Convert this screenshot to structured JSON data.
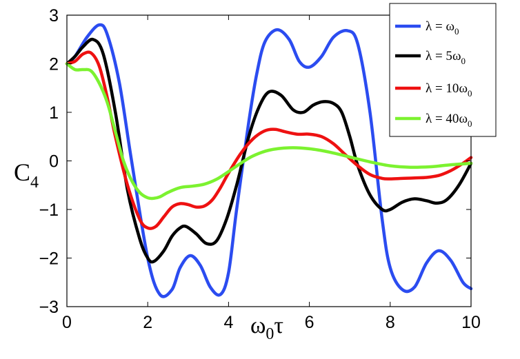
{
  "chart_data": {
    "type": "line",
    "xlabel": {
      "main": "ω",
      "sub": "0",
      "tail": "τ"
    },
    "ylabel": {
      "main": "C",
      "sub": "4"
    },
    "xlim": [
      0,
      10
    ],
    "ylim": [
      -3,
      3
    ],
    "xticks": [
      0,
      2,
      4,
      6,
      8,
      10
    ],
    "yticks": [
      3,
      2,
      1,
      0,
      -1,
      -2,
      -3
    ],
    "xtick_labels": [
      "0",
      "2",
      "4",
      "6",
      "8",
      "10"
    ],
    "ytick_labels": [
      "3",
      "2",
      "1",
      "0",
      "−1",
      "−2",
      "−3"
    ],
    "grid": false,
    "legend_position": "top-right",
    "series": [
      {
        "name": "λ = ω0",
        "legend": {
          "pre": "λ = ",
          "main": "ω",
          "sub": "0"
        },
        "color": "#2b4cf0",
        "x": [
          0,
          0.2,
          0.5,
          0.8,
          1.0,
          1.3,
          1.6,
          2.0,
          2.3,
          2.6,
          2.8,
          3.05,
          3.3,
          3.55,
          3.8,
          4.0,
          4.2,
          4.5,
          4.7,
          4.9,
          5.2,
          5.5,
          5.75,
          6.0,
          6.3,
          6.6,
          6.95,
          7.2,
          7.5,
          7.8,
          8.0,
          8.3,
          8.6,
          8.9,
          9.2,
          9.5,
          9.8,
          10.0
        ],
        "y": [
          2.0,
          2.15,
          2.55,
          2.8,
          2.6,
          1.6,
          0.0,
          -2.0,
          -2.75,
          -2.65,
          -2.2,
          -1.95,
          -2.15,
          -2.6,
          -2.75,
          -2.3,
          -1.0,
          0.8,
          1.8,
          2.45,
          2.7,
          2.5,
          2.05,
          1.93,
          2.15,
          2.55,
          2.68,
          2.4,
          1.0,
          -1.2,
          -2.2,
          -2.65,
          -2.6,
          -2.1,
          -1.85,
          -2.05,
          -2.5,
          -2.63
        ]
      },
      {
        "name": "λ = 5ω0",
        "legend": {
          "pre": "λ = 5",
          "main": "ω",
          "sub": "0"
        },
        "color": "#000000",
        "x": [
          0,
          0.2,
          0.4,
          0.65,
          0.9,
          1.2,
          1.5,
          1.8,
          2.0,
          2.15,
          2.4,
          2.6,
          2.8,
          2.95,
          3.2,
          3.45,
          3.7,
          3.95,
          4.2,
          4.5,
          4.75,
          5.0,
          5.3,
          5.6,
          5.85,
          6.1,
          6.35,
          6.6,
          6.8,
          7.0,
          7.2,
          7.5,
          7.8,
          8.0,
          8.3,
          8.6,
          8.9,
          9.15,
          9.4,
          9.7,
          10.0
        ],
        "y": [
          2.0,
          2.15,
          2.35,
          2.5,
          2.2,
          1.0,
          -0.6,
          -1.6,
          -2.0,
          -2.07,
          -1.85,
          -1.55,
          -1.38,
          -1.35,
          -1.5,
          -1.7,
          -1.65,
          -1.2,
          -0.5,
          0.5,
          1.1,
          1.42,
          1.35,
          1.05,
          1.0,
          1.15,
          1.22,
          1.18,
          1.0,
          0.5,
          -0.1,
          -0.7,
          -1.0,
          -1.0,
          -0.85,
          -0.78,
          -0.82,
          -0.87,
          -0.8,
          -0.5,
          -0.05
        ]
      },
      {
        "name": "λ = 10ω0",
        "legend": {
          "pre": "λ = 10",
          "main": "ω",
          "sub": "0"
        },
        "color": "#ee1111",
        "x": [
          0,
          0.2,
          0.4,
          0.6,
          0.8,
          1.0,
          1.2,
          1.5,
          1.8,
          2.0,
          2.2,
          2.4,
          2.6,
          2.8,
          3.0,
          3.2,
          3.4,
          3.6,
          3.8,
          4.0,
          4.3,
          4.6,
          4.9,
          5.15,
          5.4,
          5.7,
          6.0,
          6.3,
          6.6,
          6.9,
          7.2,
          7.5,
          7.8,
          8.0,
          8.3,
          8.6,
          8.9,
          9.2,
          9.5,
          9.8,
          10.0
        ],
        "y": [
          2.0,
          2.05,
          2.2,
          2.22,
          1.95,
          1.3,
          0.5,
          -0.5,
          -1.2,
          -1.38,
          -1.35,
          -1.15,
          -0.95,
          -0.88,
          -0.9,
          -0.95,
          -0.93,
          -0.8,
          -0.55,
          -0.25,
          0.15,
          0.45,
          0.62,
          0.65,
          0.6,
          0.55,
          0.55,
          0.5,
          0.35,
          0.12,
          -0.1,
          -0.28,
          -0.36,
          -0.37,
          -0.36,
          -0.35,
          -0.34,
          -0.3,
          -0.2,
          -0.05,
          0.07
        ]
      },
      {
        "name": "λ = 40ω0",
        "legend": {
          "pre": "λ = 40",
          "main": "ω",
          "sub": "0"
        },
        "color": "#7cf230",
        "x": [
          0,
          0.2,
          0.4,
          0.6,
          0.8,
          1.0,
          1.2,
          1.4,
          1.6,
          1.8,
          2.0,
          2.15,
          2.3,
          2.5,
          2.8,
          3.1,
          3.4,
          3.7,
          4.0,
          4.3,
          4.6,
          5.0,
          5.5,
          6.0,
          6.5,
          7.0,
          7.5,
          8.0,
          8.5,
          9.0,
          9.5,
          10.0
        ],
        "y": [
          2.0,
          1.88,
          1.88,
          1.85,
          1.6,
          1.2,
          0.6,
          0.0,
          -0.4,
          -0.65,
          -0.76,
          -0.77,
          -0.74,
          -0.65,
          -0.55,
          -0.52,
          -0.48,
          -0.38,
          -0.22,
          -0.05,
          0.1,
          0.22,
          0.27,
          0.25,
          0.18,
          0.08,
          -0.02,
          -0.1,
          -0.13,
          -0.12,
          -0.08,
          -0.05
        ]
      }
    ]
  }
}
